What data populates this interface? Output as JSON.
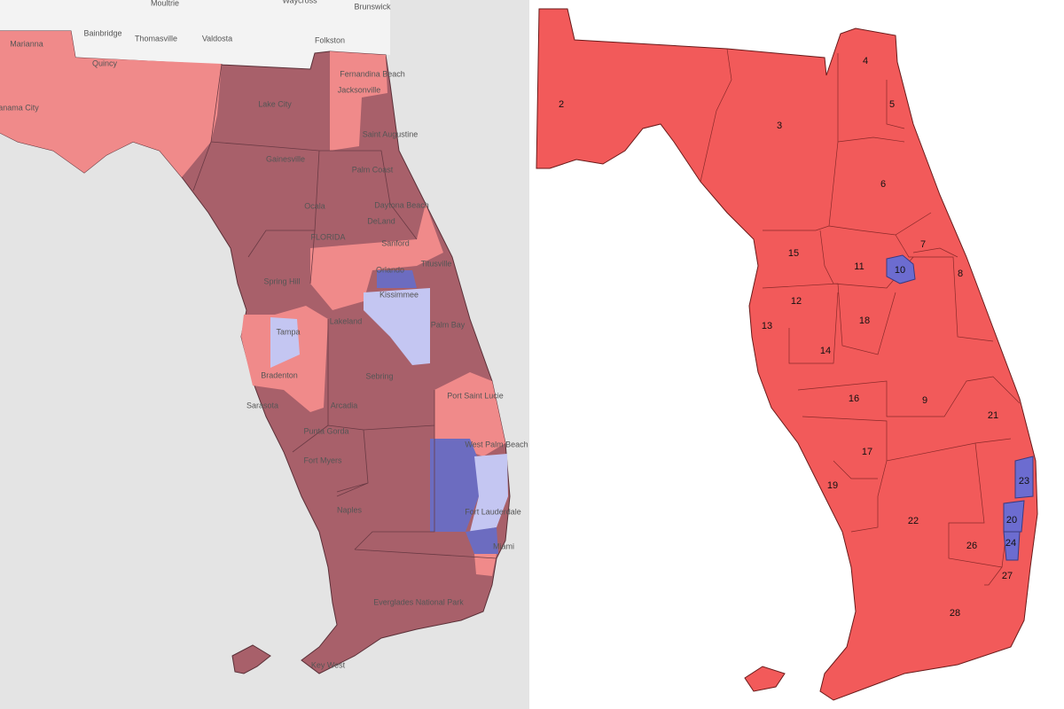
{
  "left_map": {
    "labels": [
      "Moultrie",
      "Waycross",
      "Brunswick",
      "Bainbridge",
      "Thomasville",
      "Valdosta",
      "Folkston",
      "Fernandina Beach",
      "Marianna",
      "Quincy",
      "Panama City",
      "Lake City",
      "Jacksonville",
      "Saint Augustine",
      "Gainesville",
      "Palm Coast",
      "Daytona Beach",
      "Ocala",
      "DeLand",
      "FLORIDA",
      "Sanford",
      "Orlando",
      "Titusville",
      "Spring Hill",
      "Kissimmee",
      "Palm Bay",
      "Tampa",
      "Lakeland",
      "Bradenton",
      "Sebring",
      "Port Saint Lucie",
      "Sarasota",
      "Arcadia",
      "Punta Gorda",
      "West Palm Beach",
      "Fort Myers",
      "Naples",
      "Fort Lauderdale",
      "Miami",
      "Everglades National Park",
      "Key West"
    ]
  },
  "right_map": {
    "districts": [
      "2",
      "3",
      "4",
      "5",
      "6",
      "7",
      "8",
      "9",
      "10",
      "11",
      "12",
      "13",
      "14",
      "15",
      "16",
      "17",
      "18",
      "19",
      "20",
      "21",
      "22",
      "23",
      "24",
      "26",
      "27",
      "28"
    ]
  }
}
